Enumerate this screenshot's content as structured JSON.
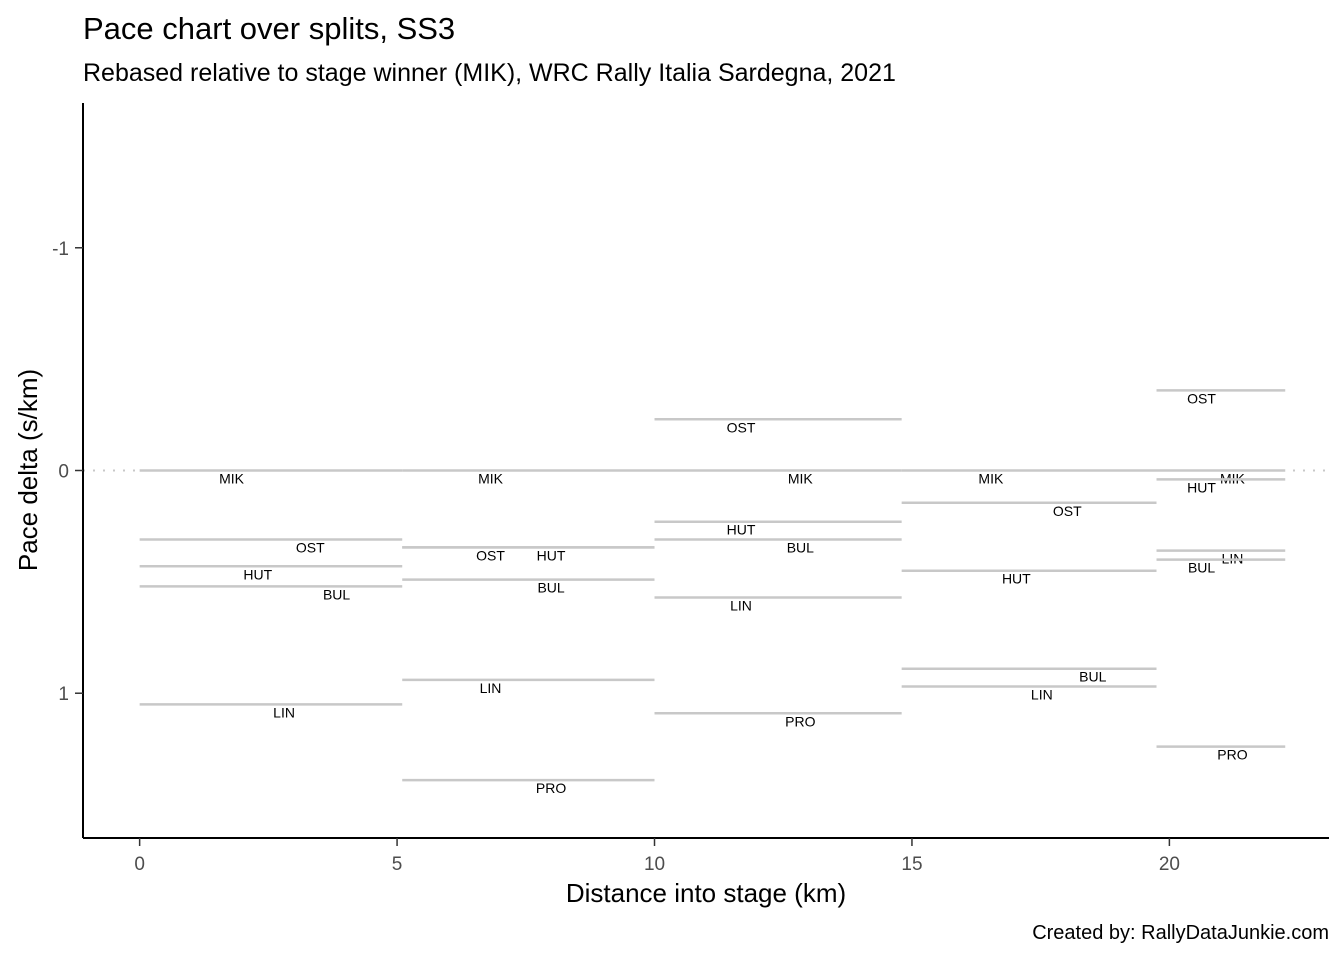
{
  "chart_data": {
    "type": "line",
    "title": "Pace chart over splits, SS3",
    "subtitle": "Rebased relative to stage winner (MIK), WRC Rally Italia Sardegna, 2021",
    "xlabel": "Distance into stage (km)",
    "ylabel": "Pace delta (s/km)",
    "caption": "Created by: RallyDataJunkie.com",
    "xlim": [
      -1.1,
      23.1
    ],
    "ylim": [
      -1.65,
      1.65
    ],
    "y_reversed": true,
    "x_ticks": [
      0,
      5,
      10,
      15,
      20
    ],
    "x_tick_labels": [
      "0",
      "5",
      "10",
      "15",
      "20"
    ],
    "y_ticks": [
      -1,
      0,
      1
    ],
    "y_tick_labels": [
      "-1",
      "0",
      "1"
    ],
    "reference_line": {
      "y": 0,
      "style": "dotted"
    },
    "grid": false,
    "line_color": "#c8c8c8",
    "splits": [
      {
        "x_start": 0.0,
        "x_end": 5.1,
        "segments": [
          {
            "driver": "MIK",
            "pace_delta": 0.0
          },
          {
            "driver": "OST",
            "pace_delta": 0.31
          },
          {
            "driver": "HUT",
            "pace_delta": 0.43
          },
          {
            "driver": "BUL",
            "pace_delta": 0.52
          },
          {
            "driver": "LIN",
            "pace_delta": 1.05
          }
        ]
      },
      {
        "x_start": 5.1,
        "x_end": 10.0,
        "segments": [
          {
            "driver": "MIK",
            "pace_delta": 0.0
          },
          {
            "driver": "HUT",
            "pace_delta": 0.345
          },
          {
            "driver": "OST",
            "pace_delta": 0.345
          },
          {
            "driver": "BUL",
            "pace_delta": 0.49
          },
          {
            "driver": "LIN",
            "pace_delta": 0.94
          },
          {
            "driver": "PRO",
            "pace_delta": 1.39
          }
        ]
      },
      {
        "x_start": 10.0,
        "x_end": 14.8,
        "segments": [
          {
            "driver": "OST",
            "pace_delta": -0.23
          },
          {
            "driver": "MIK",
            "pace_delta": 0.0
          },
          {
            "driver": "HUT",
            "pace_delta": 0.23
          },
          {
            "driver": "BUL",
            "pace_delta": 0.31
          },
          {
            "driver": "LIN",
            "pace_delta": 0.57
          },
          {
            "driver": "PRO",
            "pace_delta": 1.09
          }
        ]
      },
      {
        "x_start": 14.8,
        "x_end": 19.75,
        "segments": [
          {
            "driver": "MIK",
            "pace_delta": 0.0
          },
          {
            "driver": "OST",
            "pace_delta": 0.145
          },
          {
            "driver": "HUT",
            "pace_delta": 0.45
          },
          {
            "driver": "BUL",
            "pace_delta": 0.89
          },
          {
            "driver": "LIN",
            "pace_delta": 0.97
          }
        ]
      },
      {
        "x_start": 19.75,
        "x_end": 22.25,
        "segments": [
          {
            "driver": "OST",
            "pace_delta": -0.36
          },
          {
            "driver": "MIK",
            "pace_delta": 0.0
          },
          {
            "driver": "HUT",
            "pace_delta": 0.04
          },
          {
            "driver": "LIN",
            "pace_delta": 0.36
          },
          {
            "driver": "BUL",
            "pace_delta": 0.4
          },
          {
            "driver": "PRO",
            "pace_delta": 1.24
          }
        ]
      }
    ]
  }
}
